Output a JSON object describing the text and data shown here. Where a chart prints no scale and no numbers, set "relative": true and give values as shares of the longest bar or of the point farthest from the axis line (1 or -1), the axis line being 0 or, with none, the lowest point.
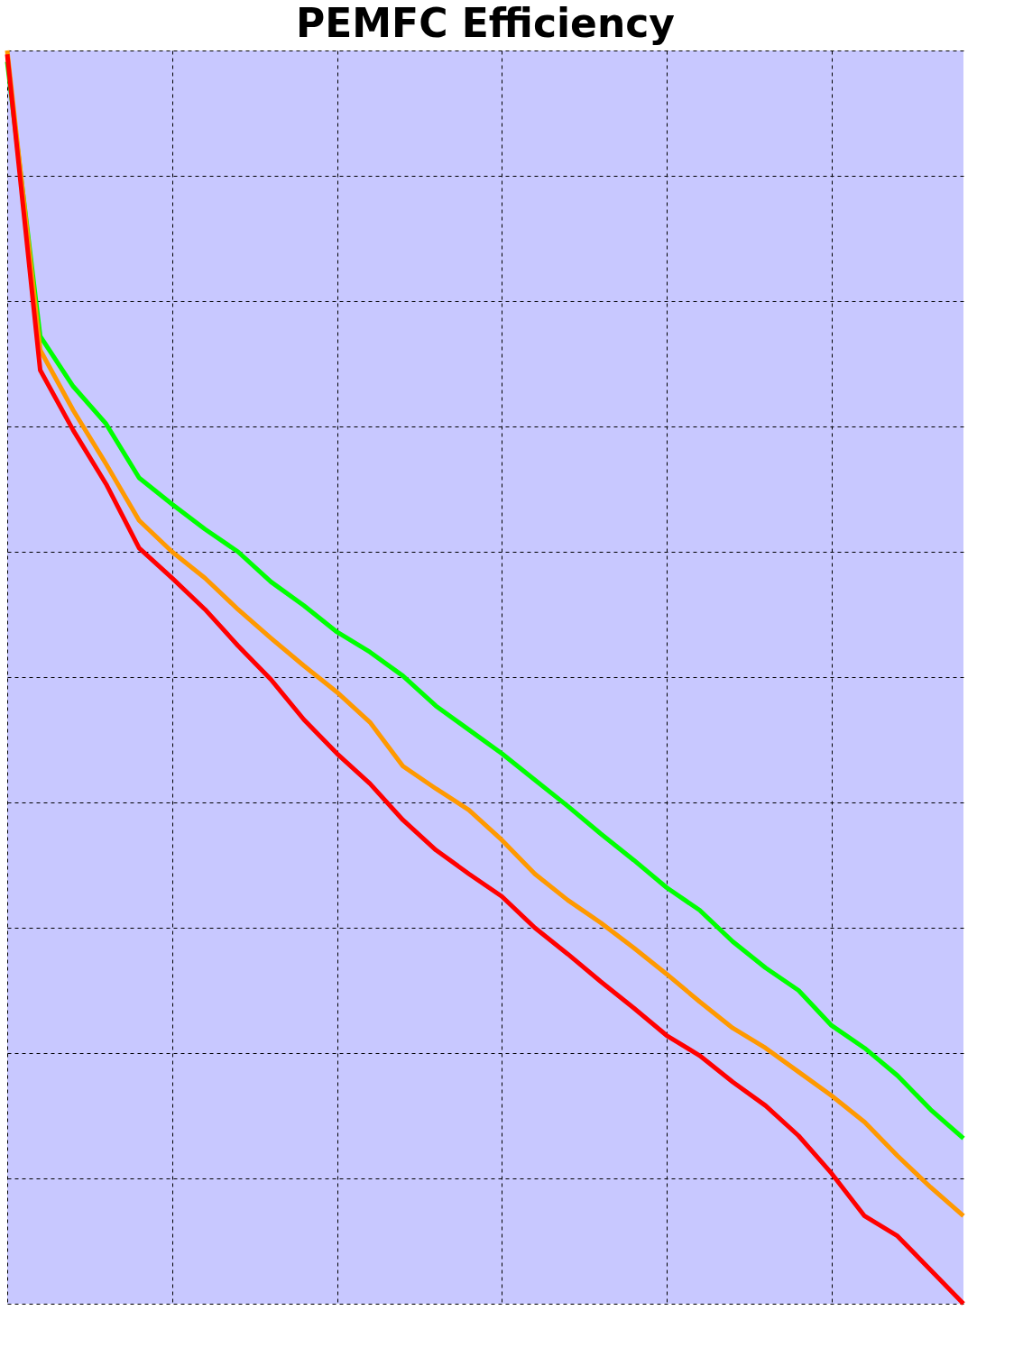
{
  "chart_data": {
    "type": "line",
    "title": "PEMFC Efficiency",
    "relative": true,
    "grid": true,
    "tick_labels": false,
    "legend": false,
    "categories": [
      null,
      null,
      null,
      null,
      null,
      null,
      null,
      null,
      null,
      null,
      null,
      null,
      null,
      null,
      null,
      null,
      null,
      null,
      null,
      null,
      null,
      null,
      null,
      null,
      null,
      null,
      null,
      null,
      null,
      null
    ],
    "series": [
      {
        "color": "#00ff00",
        "values": [
          0.991,
          0.772,
          0.732,
          0.702,
          0.659,
          0.638,
          0.618,
          0.6,
          0.576,
          0.557,
          0.536,
          0.52,
          0.501,
          0.477,
          0.458,
          0.439,
          0.418,
          0.397,
          0.375,
          0.354,
          0.332,
          0.314,
          0.289,
          0.268,
          0.25,
          0.222,
          0.204,
          0.182,
          0.155,
          0.132
        ]
      },
      {
        "color": "#ff9900",
        "values": [
          1.0,
          0.761,
          0.713,
          0.67,
          0.625,
          0.6,
          0.579,
          0.554,
          0.531,
          0.509,
          0.488,
          0.464,
          0.429,
          0.411,
          0.394,
          0.37,
          0.343,
          0.322,
          0.304,
          0.284,
          0.263,
          0.241,
          0.22,
          0.204,
          0.185,
          0.166,
          0.145,
          0.118,
          0.093,
          0.07
        ]
      },
      {
        "color": "#ff0000",
        "values": [
          0.997,
          0.745,
          0.697,
          0.654,
          0.603,
          0.579,
          0.554,
          0.525,
          0.498,
          0.466,
          0.439,
          0.415,
          0.386,
          0.362,
          0.343,
          0.325,
          0.3,
          0.279,
          0.257,
          0.236,
          0.214,
          0.198,
          0.177,
          0.158,
          0.134,
          0.104,
          0.07,
          0.054,
          0.027,
          0.0
        ]
      }
    ]
  }
}
